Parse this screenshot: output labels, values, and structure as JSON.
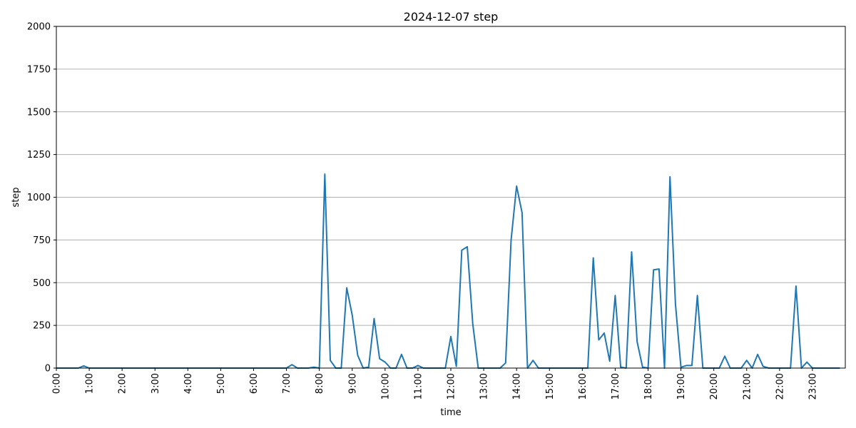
{
  "chart_data": {
    "type": "line",
    "title": "2024-12-07 step",
    "xlabel": "time",
    "ylabel": "step",
    "ylim": [
      0,
      2000
    ],
    "xlim_hours": [
      0,
      24
    ],
    "grid": "horizontal",
    "x_ticks": [
      "0:00",
      "1:00",
      "2:00",
      "3:00",
      "4:00",
      "5:00",
      "6:00",
      "7:00",
      "8:00",
      "9:00",
      "10:00",
      "11:00",
      "12:00",
      "13:00",
      "14:00",
      "15:00",
      "16:00",
      "17:00",
      "18:00",
      "19:00",
      "20:00",
      "21:00",
      "22:00",
      "23:00"
    ],
    "y_ticks": [
      "0",
      "250",
      "500",
      "750",
      "1000",
      "1250",
      "1500",
      "1750",
      "2000"
    ],
    "y_tick_values": [
      0,
      250,
      500,
      750,
      1000,
      1250,
      1500,
      1750,
      2000
    ],
    "series": [
      {
        "color": "#1f77b4",
        "values": [
          0,
          0,
          0,
          0,
          0,
          13,
          0,
          0,
          0,
          0,
          0,
          0,
          0,
          0,
          0,
          0,
          0,
          0,
          0,
          0,
          0,
          0,
          0,
          0,
          0,
          0,
          0,
          0,
          0,
          0,
          0,
          0,
          0,
          0,
          0,
          0,
          0,
          0,
          0,
          0,
          0,
          0,
          0,
          20,
          0,
          0,
          0,
          5,
          0,
          1135,
          45,
          0,
          0,
          470,
          310,
          75,
          0,
          5,
          290,
          55,
          35,
          0,
          0,
          80,
          0,
          0,
          15,
          0,
          0,
          0,
          0,
          0,
          185,
          10,
          690,
          710,
          260,
          0,
          0,
          0,
          0,
          0,
          30,
          750,
          1065,
          910,
          0,
          45,
          0,
          0,
          0,
          0,
          0,
          0,
          0,
          0,
          0,
          0,
          645,
          165,
          205,
          40,
          425,
          5,
          0,
          680,
          155,
          5,
          0,
          575,
          580,
          0,
          1120,
          375,
          5,
          15,
          15,
          425,
          0,
          0,
          0,
          0,
          70,
          0,
          0,
          0,
          45,
          0,
          80,
          10,
          0,
          0,
          0,
          0,
          0,
          480,
          0,
          35,
          0,
          0,
          0,
          0,
          0,
          0
        ]
      }
    ]
  }
}
